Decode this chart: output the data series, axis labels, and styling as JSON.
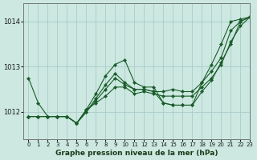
{
  "background_color": "#cce8e0",
  "grid_color": "#aacccc",
  "line_color": "#1a5c2a",
  "marker_color": "#1a5c2a",
  "xlabel": "Graphe pression niveau de la mer (hPa)",
  "xlim": [
    -0.5,
    23
  ],
  "ylim": [
    1011.4,
    1014.4
  ],
  "yticks": [
    1012,
    1013,
    1014
  ],
  "xticks": [
    0,
    1,
    2,
    3,
    4,
    5,
    6,
    7,
    8,
    9,
    10,
    11,
    12,
    13,
    14,
    15,
    16,
    17,
    18,
    19,
    20,
    21,
    22,
    23
  ],
  "series": [
    [
      1012.75,
      1012.2,
      1011.9,
      1011.9,
      1011.9,
      1011.75,
      1012.05,
      1012.4,
      1012.8,
      1013.05,
      1013.15,
      1012.65,
      1012.55,
      1012.55,
      1012.2,
      1012.15,
      1012.15,
      1012.15,
      1012.65,
      1013.05,
      1013.5,
      1014.0,
      1014.05,
      1014.1
    ],
    [
      1011.9,
      1011.9,
      1011.9,
      1011.9,
      1011.9,
      1011.75,
      1012.0,
      1012.3,
      1012.6,
      1012.85,
      1012.65,
      1012.5,
      1012.5,
      1012.45,
      1012.2,
      1012.15,
      1012.15,
      1012.15,
      1012.45,
      1012.7,
      1013.1,
      1013.5,
      1014.0,
      1014.1
    ],
    [
      1011.9,
      1011.9,
      1011.9,
      1011.9,
      1011.9,
      1011.75,
      1012.0,
      1012.25,
      1012.5,
      1012.75,
      1012.6,
      1012.5,
      1012.5,
      1012.45,
      1012.45,
      1012.5,
      1012.45,
      1012.45,
      1012.65,
      1012.9,
      1013.2,
      1013.8,
      1014.0,
      1014.1
    ],
    [
      1011.9,
      1011.9,
      1011.9,
      1011.9,
      1011.9,
      1011.75,
      1012.05,
      1012.2,
      1012.35,
      1012.55,
      1012.55,
      1012.4,
      1012.45,
      1012.4,
      1012.35,
      1012.35,
      1012.35,
      1012.35,
      1012.55,
      1012.75,
      1013.05,
      1013.55,
      1013.9,
      1014.1
    ]
  ]
}
